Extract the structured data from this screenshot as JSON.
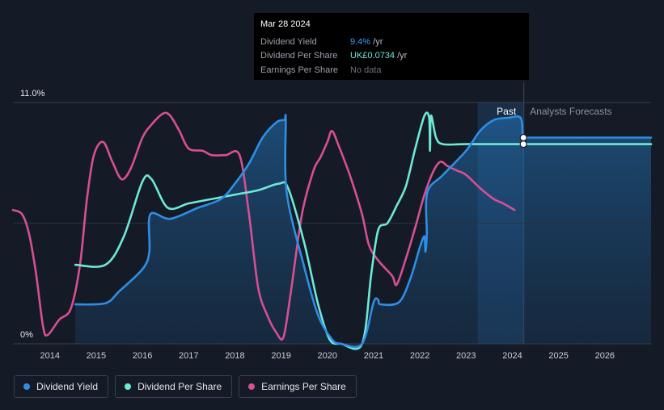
{
  "tooltip": {
    "date": "Mar 28 2024",
    "rows": [
      {
        "label": "Dividend Yield",
        "value": "9.4%",
        "unit": " /yr"
      },
      {
        "label": "Dividend Per Share",
        "value": "UK£0.0734",
        "unit": " /yr"
      },
      {
        "label": "Earnings Per Share",
        "value": "No data",
        "unit": ""
      }
    ]
  },
  "legend": [
    {
      "label": "Dividend Yield",
      "color": "#2e8ee6"
    },
    {
      "label": "Dividend Per Share",
      "color": "#6ee9d6"
    },
    {
      "label": "Earnings Per Share",
      "color": "#d64f93"
    }
  ],
  "chart_data": {
    "type": "line",
    "title": "",
    "xlabel": "",
    "ylabel": "",
    "y_axis_labels": [
      "11.0%",
      "0%"
    ],
    "ylim": [
      0,
      11
    ],
    "xlim": [
      2013.2,
      2027.0
    ],
    "x_ticks": [
      2014,
      2015,
      2016,
      2017,
      2018,
      2019,
      2020,
      2021,
      2022,
      2023,
      2024,
      2025,
      2026
    ],
    "region_labels": {
      "past": "Past",
      "forecast": "Analysts Forecasts"
    },
    "past_region_start": 2023.25,
    "forecast_start": 2024.24,
    "series": [
      {
        "name": "Dividend Yield",
        "color": "#2e8ee6",
        "unit": "%",
        "points": [
          [
            2014.55,
            1.8
          ],
          [
            2015.2,
            1.85
          ],
          [
            2015.5,
            2.4
          ],
          [
            2016.0,
            3.4
          ],
          [
            2016.15,
            4.2
          ],
          [
            2016.17,
            5.9
          ],
          [
            2016.6,
            5.7
          ],
          [
            2017.2,
            6.2
          ],
          [
            2017.7,
            6.6
          ],
          [
            2018.0,
            7.3
          ],
          [
            2018.3,
            8.2
          ],
          [
            2018.6,
            9.4
          ],
          [
            2018.9,
            10.1
          ],
          [
            2019.07,
            10.2
          ],
          [
            2019.1,
            10.2
          ],
          [
            2019.12,
            6.9
          ],
          [
            2019.5,
            3.5
          ],
          [
            2019.8,
            1.3
          ],
          [
            2020.1,
            0.2
          ],
          [
            2020.3,
            0
          ],
          [
            2020.75,
            0
          ],
          [
            2021.0,
            1.9
          ],
          [
            2021.1,
            2.0
          ],
          [
            2021.15,
            1.8
          ],
          [
            2021.55,
            1.9
          ],
          [
            2021.8,
            3.0
          ],
          [
            2022.0,
            4.4
          ],
          [
            2022.1,
            4.9
          ],
          [
            2022.12,
            4.2
          ],
          [
            2022.15,
            5.0
          ],
          [
            2022.16,
            6.9
          ],
          [
            2022.5,
            7.7
          ],
          [
            2023.0,
            8.8
          ],
          [
            2023.3,
            9.7
          ],
          [
            2023.6,
            10.2
          ],
          [
            2023.9,
            10.3
          ],
          [
            2024.18,
            10.3
          ],
          [
            2024.22,
            9.4
          ]
        ]
      },
      {
        "name": "Dividend Yield forecast",
        "color": "#2e8ee6",
        "unit": "%",
        "points": [
          [
            2024.24,
            9.4
          ],
          [
            2027.0,
            9.4
          ]
        ]
      },
      {
        "name": "Dividend Per Share",
        "color": "#6ee9d6",
        "unit": "relative",
        "points": [
          [
            2014.55,
            3.6
          ],
          [
            2015.2,
            3.6
          ],
          [
            2015.6,
            4.9
          ],
          [
            2016.0,
            7.4
          ],
          [
            2016.2,
            7.5
          ],
          [
            2016.55,
            6.2
          ],
          [
            2017.0,
            6.4
          ],
          [
            2017.5,
            6.6
          ],
          [
            2018.0,
            6.8
          ],
          [
            2018.5,
            7.0
          ],
          [
            2018.95,
            7.3
          ],
          [
            2019.15,
            7.1
          ],
          [
            2019.5,
            4.6
          ],
          [
            2019.8,
            1.8
          ],
          [
            2020.05,
            0.2
          ],
          [
            2020.3,
            0
          ],
          [
            2020.75,
            0
          ],
          [
            2020.95,
            3.2
          ],
          [
            2021.1,
            5.2
          ],
          [
            2021.3,
            5.5
          ],
          [
            2021.5,
            6.3
          ],
          [
            2021.7,
            7.2
          ],
          [
            2021.9,
            8.9
          ],
          [
            2022.1,
            10.4
          ],
          [
            2022.2,
            10.3
          ],
          [
            2022.22,
            8.8
          ],
          [
            2022.24,
            10.4
          ],
          [
            2022.35,
            9.4
          ],
          [
            2022.5,
            9.1
          ],
          [
            2023.0,
            9.1
          ],
          [
            2024.22,
            9.1
          ]
        ]
      },
      {
        "name": "Dividend Per Share forecast",
        "color": "#6ee9d6",
        "unit": "relative",
        "points": [
          [
            2024.24,
            9.1
          ],
          [
            2027.0,
            9.1
          ]
        ]
      },
      {
        "name": "Earnings Per Share",
        "color": "#d64f93",
        "unit": "relative",
        "points": [
          [
            2013.2,
            6.1
          ],
          [
            2013.4,
            5.9
          ],
          [
            2013.55,
            5.0
          ],
          [
            2013.7,
            3.2
          ],
          [
            2013.85,
            0.8
          ],
          [
            2013.95,
            0.4
          ],
          [
            2014.2,
            1.1
          ],
          [
            2014.45,
            1.6
          ],
          [
            2014.65,
            3.6
          ],
          [
            2014.8,
            6.6
          ],
          [
            2014.95,
            8.6
          ],
          [
            2015.15,
            9.2
          ],
          [
            2015.35,
            8.3
          ],
          [
            2015.55,
            7.5
          ],
          [
            2015.75,
            8.0
          ],
          [
            2016.0,
            9.4
          ],
          [
            2016.2,
            10.0
          ],
          [
            2016.45,
            10.5
          ],
          [
            2016.6,
            10.4
          ],
          [
            2016.8,
            9.7
          ],
          [
            2017.0,
            8.9
          ],
          [
            2017.3,
            8.8
          ],
          [
            2017.5,
            8.6
          ],
          [
            2017.8,
            8.6
          ],
          [
            2018.1,
            8.6
          ],
          [
            2018.3,
            6.0
          ],
          [
            2018.5,
            2.6
          ],
          [
            2018.7,
            1.3
          ],
          [
            2018.9,
            0.5
          ],
          [
            2019.05,
            0.3
          ],
          [
            2019.2,
            2.2
          ],
          [
            2019.45,
            5.9
          ],
          [
            2019.7,
            7.9
          ],
          [
            2019.85,
            8.5
          ],
          [
            2020.0,
            9.2
          ],
          [
            2020.1,
            9.7
          ],
          [
            2020.25,
            9.0
          ],
          [
            2020.5,
            7.6
          ],
          [
            2020.75,
            5.9
          ],
          [
            2020.9,
            4.5
          ],
          [
            2021.1,
            3.8
          ],
          [
            2021.4,
            3.1
          ],
          [
            2021.5,
            2.7
          ],
          [
            2021.7,
            3.9
          ],
          [
            2021.9,
            5.3
          ],
          [
            2022.1,
            6.8
          ],
          [
            2022.3,
            7.9
          ],
          [
            2022.45,
            8.3
          ],
          [
            2022.6,
            8.1
          ],
          [
            2022.8,
            7.9
          ],
          [
            2023.0,
            7.7
          ],
          [
            2023.3,
            7.1
          ],
          [
            2023.6,
            6.6
          ],
          [
            2023.8,
            6.4
          ],
          [
            2024.05,
            6.1
          ]
        ]
      }
    ],
    "markers": [
      {
        "series": "Dividend Yield",
        "x": 2024.24,
        "y": 9.4
      },
      {
        "series": "Dividend Per Share",
        "x": 2024.24,
        "y": 9.1
      }
    ]
  }
}
